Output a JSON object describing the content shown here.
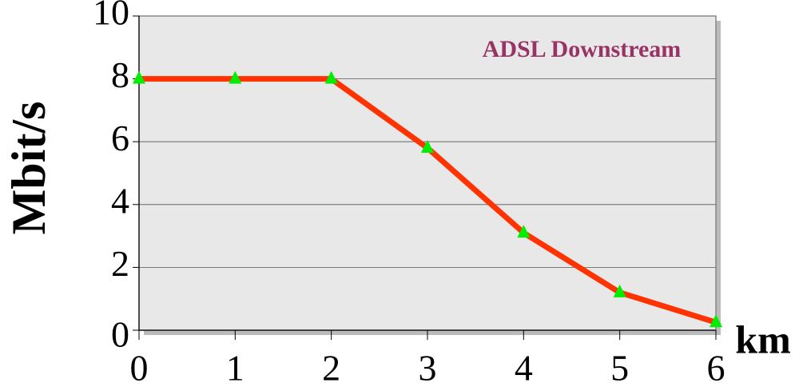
{
  "chart_data": {
    "type": "line",
    "title": "ADSL Downstream",
    "x_label": "km",
    "y_label": "Mbit/s",
    "x": [
      0,
      1,
      2,
      3,
      4,
      5,
      6
    ],
    "series": [
      {
        "color": "#ff3300",
        "marker_color": "#00ee00",
        "values": [
          8,
          8,
          8,
          5.8,
          3.1,
          1.2,
          0.25
        ]
      }
    ],
    "xlim": [
      0,
      6
    ],
    "xticks": [
      0,
      1,
      2,
      3,
      4,
      5,
      6
    ],
    "ylim": [
      0,
      10
    ],
    "yticks": [
      0,
      2,
      4,
      6,
      8,
      10
    ],
    "grid": true
  }
}
